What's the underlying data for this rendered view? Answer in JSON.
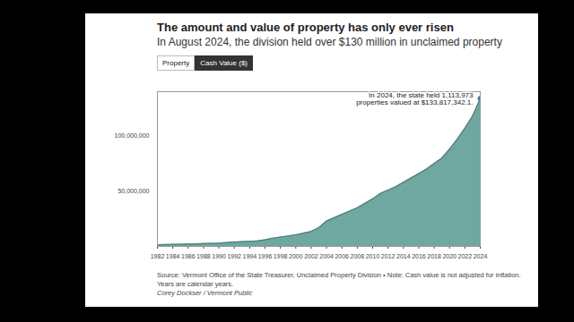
{
  "chart_data": {
    "type": "area",
    "title": "The amount and value of property has only ever risen",
    "subtitle": "In August 2024, the division held over $130 million in unclaimed property",
    "source": "Source: Vermont Office of the State Treasurer, Unclaimed Property Division • Note: Cash value is not adjusted for inflation. Years are calendar years.",
    "credit": "Corey Dockser / Vermont Public",
    "x": [
      1982,
      1983,
      1984,
      1985,
      1986,
      1987,
      1988,
      1989,
      1990,
      1991,
      1992,
      1993,
      1994,
      1995,
      1996,
      1997,
      1998,
      1999,
      2000,
      2001,
      2002,
      2003,
      2004,
      2005,
      2006,
      2007,
      2008,
      2009,
      2010,
      2011,
      2012,
      2013,
      2014,
      2015,
      2016,
      2017,
      2018,
      2019,
      2020,
      2021,
      2022,
      2023,
      2024
    ],
    "values": [
      1500000,
      1700000,
      1900000,
      2000000,
      2200000,
      2400000,
      2600000,
      2800000,
      3000000,
      3500000,
      4000000,
      4300000,
      4600000,
      5000000,
      6000000,
      7500000,
      8500000,
      9500000,
      10500000,
      12000000,
      13500000,
      17000000,
      23000000,
      26000000,
      29000000,
      32000000,
      35000000,
      39000000,
      43000000,
      48000000,
      51000000,
      54000000,
      58000000,
      62000000,
      66000000,
      70000000,
      75000000,
      80000000,
      88000000,
      97000000,
      107000000,
      118000000,
      133817342.1
    ],
    "color": "#5e9f96",
    "xlim": [
      1982,
      2024
    ],
    "xticks": [
      1982,
      1984,
      1986,
      1988,
      1990,
      1992,
      1994,
      1996,
      1998,
      2000,
      2002,
      2004,
      2006,
      2008,
      2010,
      2012,
      2014,
      2016,
      2018,
      2020,
      2022,
      2024
    ],
    "ylim": [
      0,
      140000000
    ],
    "yticks": [
      {
        "value": 50000000,
        "label": "50,000,000"
      },
      {
        "value": 100000000,
        "label": "100,000,000"
      }
    ],
    "grid": false,
    "annotation": {
      "x": 2024,
      "y": 133817342.1,
      "text": "In 2024, the state held 1,113,973 properties valued at $133,817,342.1.",
      "color": "#4a78b5"
    }
  },
  "controls": {
    "options": [
      "Property",
      "Cash Value ($)"
    ],
    "selected": "Cash Value ($)"
  }
}
